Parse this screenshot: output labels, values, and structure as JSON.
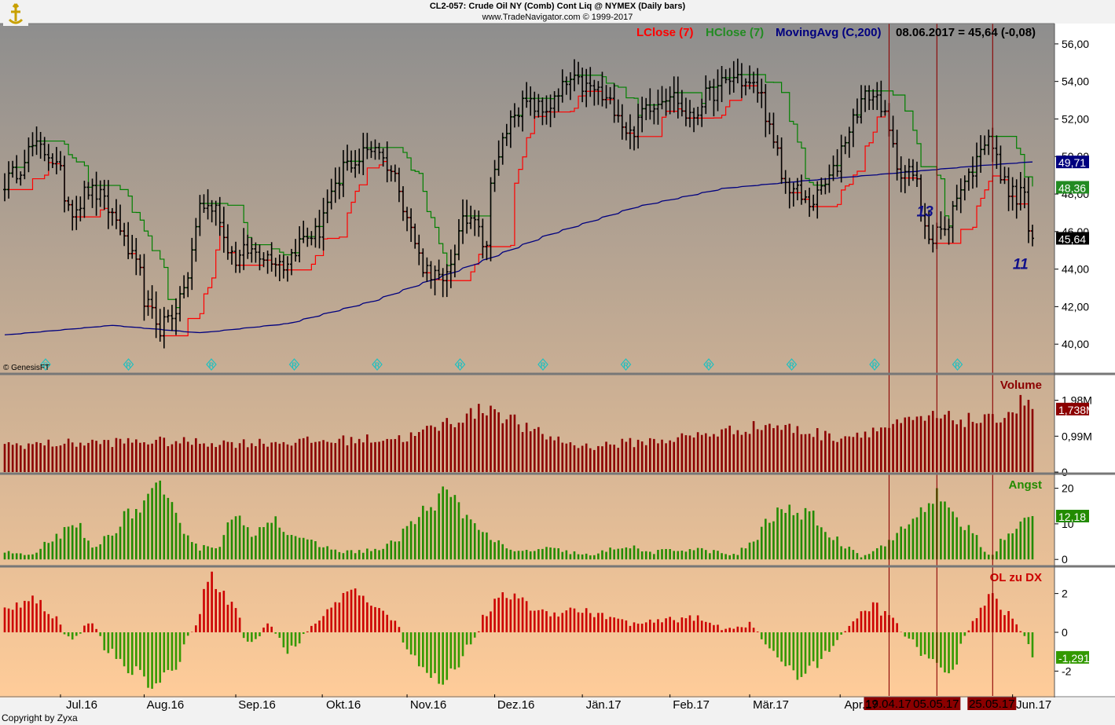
{
  "header": {
    "line1": "CL2-057:  Crude Oil NY (Comb) Cont Liq @ NYMEX  (Daily bars)",
    "line2": "www.TradeNavigator.com © 1999-2017"
  },
  "logo_icon": "trade-navigator-logo-icon",
  "watermark": "© GenesisFT",
  "copyright": "Copyright by Zyxa",
  "colors": {
    "background_top": "#8e8e8e",
    "background_bottom": "#ffcc99",
    "price_bars": "#000000",
    "lclose": "#ff0000",
    "hclose": "#008000",
    "moving_avg": "#00007f",
    "volume": "#8b0000",
    "angst": "#228b00",
    "ol_positive": "#cc0000",
    "ol_negative": "#339900",
    "markers": "#8b0000",
    "r_markers": "#20c0c0"
  },
  "legend": {
    "lclose": "LClose (7)",
    "hclose": "HClose (7)",
    "moving_avg": "MovingAvg (C,200)",
    "readout": "08.06.2017 = 45,64 (-0,08)"
  },
  "annotations": [
    {
      "text": "13",
      "date": "2017-05-02",
      "price": 46.8
    },
    {
      "text": "11",
      "date": "2017-06-04",
      "price": 44.0
    }
  ],
  "vertical_markers": [
    {
      "label": "19.04.17",
      "date": "2017-04-19"
    },
    {
      "label": "05.05.17",
      "date": "2017-05-05"
    },
    {
      "label": "25.05.17",
      "date": "2017-05-25"
    }
  ],
  "x_axis": {
    "months": [
      {
        "label": "Jul.16",
        "date": "2016-07-01"
      },
      {
        "label": "Aug.16",
        "date": "2016-08-01"
      },
      {
        "label": "Sep.16",
        "date": "2016-09-01"
      },
      {
        "label": "Okt.16",
        "date": "2016-10-01"
      },
      {
        "label": "Nov.16",
        "date": "2016-11-01"
      },
      {
        "label": "Dez.16",
        "date": "2016-12-01"
      },
      {
        "label": "Jän.17",
        "date": "2017-01-01"
      },
      {
        "label": "Feb.17",
        "date": "2017-02-01"
      },
      {
        "label": "Mär.17",
        "date": "2017-03-01"
      },
      {
        "label": "Apr.17",
        "date": "2017-04-01"
      },
      {
        "label": "Jun.17",
        "date": "2017-06-01"
      }
    ]
  },
  "chart_data": [
    {
      "type": "ohlc",
      "panel": "price",
      "y_ticks": [
        "40,00",
        "42,00",
        "44,00",
        "46,00",
        "48,00",
        "50,00",
        "52,00",
        "54,00",
        "56,00"
      ],
      "ylim": [
        38.5,
        57
      ],
      "price_key_points": [
        [
          "2016-06-13",
          48.6
        ],
        [
          "2016-06-22",
          50.5
        ],
        [
          "2016-06-28",
          50.2
        ],
        [
          "2016-07-06",
          47.2
        ],
        [
          "2016-07-12",
          48.2
        ],
        [
          "2016-07-18",
          47.5
        ],
        [
          "2016-07-25",
          45.4
        ],
        [
          "2016-08-02",
          42.0
        ],
        [
          "2016-08-05",
          40.8
        ],
        [
          "2016-08-10",
          41.6
        ],
        [
          "2016-08-16",
          43.5
        ],
        [
          "2016-08-19",
          47.5
        ],
        [
          "2016-08-25",
          47.2
        ],
        [
          "2016-09-01",
          44.5
        ],
        [
          "2016-09-06",
          45.0
        ],
        [
          "2016-09-12",
          44.8
        ],
        [
          "2016-09-19",
          44.2
        ],
        [
          "2016-09-23",
          45.4
        ],
        [
          "2016-09-30",
          46.0
        ],
        [
          "2016-10-05",
          47.8
        ],
        [
          "2016-10-10",
          49.5
        ],
        [
          "2016-10-14",
          49.8
        ],
        [
          "2016-10-20",
          50.6
        ],
        [
          "2016-10-25",
          49.6
        ],
        [
          "2016-10-31",
          47.5
        ],
        [
          "2016-11-04",
          44.7
        ],
        [
          "2016-11-11",
          43.5
        ],
        [
          "2016-11-14",
          43.0
        ],
        [
          "2016-11-18",
          45.8
        ],
        [
          "2016-11-24",
          47.0
        ],
        [
          "2016-11-29",
          45.0
        ],
        [
          "2016-11-30",
          49.0
        ],
        [
          "2016-12-05",
          50.8
        ],
        [
          "2016-12-08",
          52.5
        ],
        [
          "2016-12-13",
          52.8
        ],
        [
          "2016-12-19",
          52.4
        ],
        [
          "2016-12-28",
          54.0
        ],
        [
          "2017-01-06",
          53.5
        ],
        [
          "2017-01-13",
          52.5
        ],
        [
          "2017-01-18",
          51.2
        ],
        [
          "2017-01-24",
          52.7
        ],
        [
          "2017-02-01",
          53.4
        ],
        [
          "2017-02-08",
          52.0
        ],
        [
          "2017-02-14",
          53.2
        ],
        [
          "2017-02-24",
          54.3
        ],
        [
          "2017-03-01",
          53.8
        ],
        [
          "2017-03-06",
          53.2
        ],
        [
          "2017-03-09",
          50.5
        ],
        [
          "2017-03-14",
          48.5
        ],
        [
          "2017-03-22",
          47.5
        ],
        [
          "2017-03-28",
          48.5
        ],
        [
          "2017-04-03",
          50.5
        ],
        [
          "2017-04-07",
          52.5
        ],
        [
          "2017-04-12",
          53.3
        ],
        [
          "2017-04-17",
          52.8
        ],
        [
          "2017-04-21",
          49.6
        ],
        [
          "2017-04-27",
          49.0
        ],
        [
          "2017-05-04",
          45.5
        ],
        [
          "2017-05-05",
          46.2
        ],
        [
          "2017-05-09",
          45.9
        ],
        [
          "2017-05-12",
          47.8
        ],
        [
          "2017-05-17",
          49.0
        ],
        [
          "2017-05-24",
          51.3
        ],
        [
          "2017-05-26",
          49.8
        ],
        [
          "2017-05-31",
          48.3
        ],
        [
          "2017-06-02",
          47.7
        ],
        [
          "2017-06-06",
          48.2
        ],
        [
          "2017-06-07",
          46.0
        ],
        [
          "2017-06-08",
          45.64
        ]
      ],
      "lclose_legend": "LClose (7)",
      "hclose_legend": "HClose (7)",
      "ma_legend": "MovingAvg (C,200)",
      "ma_key_points": [
        [
          "2016-06-13",
          40.5
        ],
        [
          "2016-07-20",
          41.0
        ],
        [
          "2016-08-20",
          40.6
        ],
        [
          "2016-09-20",
          41.1
        ],
        [
          "2016-10-20",
          42.3
        ],
        [
          "2016-11-20",
          44.0
        ],
        [
          "2016-12-20",
          45.8
        ],
        [
          "2017-01-20",
          47.3
        ],
        [
          "2017-02-20",
          48.3
        ],
        [
          "2017-03-20",
          48.7
        ],
        [
          "2017-04-20",
          49.1
        ],
        [
          "2017-05-20",
          49.5
        ],
        [
          "2017-06-08",
          49.71
        ]
      ],
      "value_labels": [
        {
          "value": "49,71",
          "y": 49.71,
          "color": "#00007f"
        },
        {
          "value": "48,36",
          "y": 48.36,
          "color": "#228b22"
        },
        {
          "value": "45,64",
          "y": 45.64,
          "color": "#000000"
        }
      ]
    },
    {
      "type": "bar",
      "panel": "volume",
      "title": "Volume",
      "y_ticks": [
        {
          "label": "0",
          "v": 0
        },
        {
          "label": "0,99M",
          "v": 0.99
        },
        {
          "label": "1,98M",
          "v": 1.98
        }
      ],
      "ylim": [
        0,
        2.6
      ],
      "value_label": {
        "value": "1,738M",
        "y": 1.738
      },
      "key_points": [
        [
          "2016-06-13",
          0.75
        ],
        [
          "2016-08-01",
          0.85
        ],
        [
          "2016-09-01",
          0.8
        ],
        [
          "2016-10-01",
          0.85
        ],
        [
          "2016-11-01",
          0.95
        ],
        [
          "2016-11-30",
          1.8
        ],
        [
          "2016-12-15",
          1.1
        ],
        [
          "2017-01-01",
          0.7
        ],
        [
          "2017-02-01",
          0.9
        ],
        [
          "2017-03-08",
          1.3
        ],
        [
          "2017-04-01",
          0.95
        ],
        [
          "2017-05-04",
          1.5
        ],
        [
          "2017-05-25",
          1.4
        ],
        [
          "2017-06-07",
          2.0
        ],
        [
          "2017-06-08",
          1.738
        ]
      ]
    },
    {
      "type": "bar",
      "panel": "angst",
      "title": "Angst",
      "y_ticks": [
        {
          "label": "0",
          "v": 0
        },
        {
          "label": "10",
          "v": 10
        },
        {
          "label": "20",
          "v": 20
        }
      ],
      "ylim": [
        -1.5,
        23
      ],
      "value_label": {
        "value": "12,18",
        "y": 12.18
      },
      "key_points": [
        [
          "2016-06-13",
          2
        ],
        [
          "2016-06-22",
          1
        ],
        [
          "2016-07-01",
          7
        ],
        [
          "2016-07-08",
          9
        ],
        [
          "2016-07-14",
          3
        ],
        [
          "2016-07-25",
          12
        ],
        [
          "2016-08-01",
          16
        ],
        [
          "2016-08-05",
          20
        ],
        [
          "2016-08-12",
          12
        ],
        [
          "2016-08-19",
          3
        ],
        [
          "2016-08-26",
          4
        ],
        [
          "2016-09-01",
          12
        ],
        [
          "2016-09-07",
          7
        ],
        [
          "2016-09-14",
          12
        ],
        [
          "2016-09-21",
          7
        ],
        [
          "2016-09-30",
          4
        ],
        [
          "2016-10-10",
          2
        ],
        [
          "2016-10-24",
          3
        ],
        [
          "2016-11-01",
          9
        ],
        [
          "2016-11-14",
          19
        ],
        [
          "2016-11-22",
          12
        ],
        [
          "2016-11-30",
          6
        ],
        [
          "2016-12-08",
          2
        ],
        [
          "2016-12-20",
          3
        ],
        [
          "2017-01-05",
          1
        ],
        [
          "2017-01-15",
          4
        ],
        [
          "2017-01-25",
          2
        ],
        [
          "2017-02-10",
          3
        ],
        [
          "2017-02-25",
          1
        ],
        [
          "2017-03-03",
          6
        ],
        [
          "2017-03-10",
          13
        ],
        [
          "2017-03-16",
          14
        ],
        [
          "2017-03-23",
          12
        ],
        [
          "2017-03-30",
          6
        ],
        [
          "2017-04-10",
          1
        ],
        [
          "2017-04-19",
          5
        ],
        [
          "2017-04-26",
          10
        ],
        [
          "2017-05-05",
          18
        ],
        [
          "2017-05-12",
          12
        ],
        [
          "2017-05-19",
          7
        ],
        [
          "2017-05-24",
          1
        ],
        [
          "2017-05-30",
          6
        ],
        [
          "2017-06-05",
          10
        ],
        [
          "2017-06-08",
          12.18
        ]
      ]
    },
    {
      "type": "bar",
      "panel": "ol_zu_dx",
      "title": "OL zu DX",
      "y_ticks": [
        {
          "label": "-2",
          "v": -2
        },
        {
          "label": "0",
          "v": 0
        },
        {
          "label": "2",
          "v": 2
        }
      ],
      "ylim": [
        -3.2,
        3.2
      ],
      "value_label": {
        "value": "-1,2916",
        "y": -1.2916
      },
      "key_points": [
        [
          "2016-06-13",
          1.2
        ],
        [
          "2016-06-22",
          1.9
        ],
        [
          "2016-07-01",
          0.5
        ],
        [
          "2016-07-06",
          -0.5
        ],
        [
          "2016-07-12",
          0.6
        ],
        [
          "2016-07-18",
          -0.8
        ],
        [
          "2016-07-26",
          -1.8
        ],
        [
          "2016-08-05",
          -2.8
        ],
        [
          "2016-08-12",
          -1.5
        ],
        [
          "2016-08-17",
          0
        ],
        [
          "2016-08-23",
          3.0
        ],
        [
          "2016-08-31",
          1.5
        ],
        [
          "2016-09-06",
          -0.6
        ],
        [
          "2016-09-13",
          0.4
        ],
        [
          "2016-09-20",
          -1.0
        ],
        [
          "2016-09-27",
          0.1
        ],
        [
          "2016-10-05",
          1.3
        ],
        [
          "2016-10-12",
          2.1
        ],
        [
          "2016-10-20",
          1.5
        ],
        [
          "2016-10-28",
          0.4
        ],
        [
          "2016-11-04",
          -1.6
        ],
        [
          "2016-11-12",
          -2.6
        ],
        [
          "2016-11-18",
          -1.8
        ],
        [
          "2016-11-24",
          -0.3
        ],
        [
          "2016-12-01",
          1.5
        ],
        [
          "2016-12-08",
          2.0
        ],
        [
          "2016-12-15",
          1.2
        ],
        [
          "2016-12-22",
          1.0
        ],
        [
          "2016-12-30",
          1.2
        ],
        [
          "2017-01-10",
          0.8
        ],
        [
          "2017-01-20",
          0.4
        ],
        [
          "2017-01-30",
          0.6
        ],
        [
          "2017-02-08",
          0.8
        ],
        [
          "2017-02-20",
          0.2
        ],
        [
          "2017-03-01",
          0.4
        ],
        [
          "2017-03-08",
          -0.8
        ],
        [
          "2017-03-17",
          -2.4
        ],
        [
          "2017-03-27",
          -1.2
        ],
        [
          "2017-04-05",
          0.3
        ],
        [
          "2017-04-14",
          1.5
        ],
        [
          "2017-04-21",
          0.5
        ],
        [
          "2017-04-27",
          -0.5
        ],
        [
          "2017-05-05",
          -1.8
        ],
        [
          "2017-05-12",
          -1.8
        ],
        [
          "2017-05-17",
          0.2
        ],
        [
          "2017-05-24",
          1.9
        ],
        [
          "2017-05-31",
          0.9
        ],
        [
          "2017-06-06",
          -0.2
        ],
        [
          "2017-06-08",
          -1.2916
        ]
      ]
    }
  ]
}
